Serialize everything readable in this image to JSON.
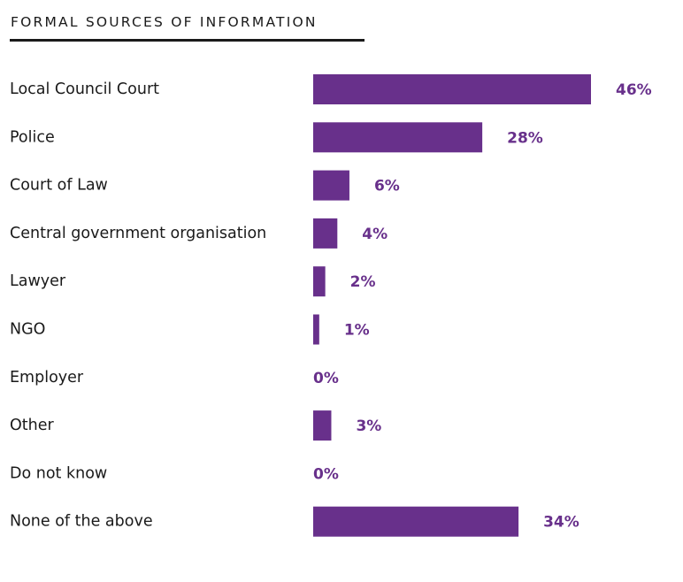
{
  "colors": {
    "bar": "#68308b",
    "value_text": "#68308b",
    "zero_value_text": "#68308b",
    "text": "#1a1a1a"
  },
  "chart_data": {
    "type": "bar",
    "orientation": "horizontal",
    "title": "FORMAL SOURCES OF INFORMATION",
    "categories": [
      "Local Council Court",
      "Police",
      "Court of Law",
      "Central government organisation",
      "Lawyer",
      "NGO",
      "Employer",
      "Other",
      "Do not know",
      "None of the above"
    ],
    "values": [
      46,
      28,
      6,
      4,
      2,
      1,
      0,
      3,
      0,
      34
    ],
    "value_labels": [
      "46%",
      "28%",
      "6%",
      "4%",
      "2%",
      "1%",
      "0%",
      "3%",
      "0%",
      "34%"
    ],
    "unit": "%",
    "xlim": [
      0,
      46
    ],
    "grid": false,
    "legend": "none"
  }
}
